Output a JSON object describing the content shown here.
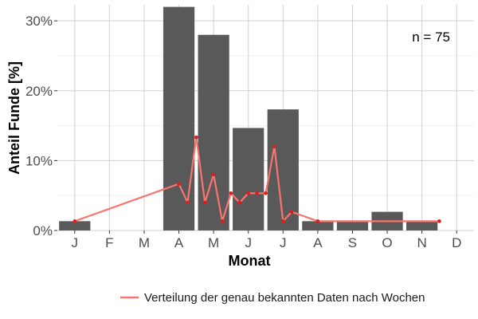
{
  "chart_data": {
    "type": "bar",
    "xlabel": "Monat",
    "ylabel": "Anteil Funde [%]",
    "ylim": [
      0,
      32.3
    ],
    "y_ticks": [
      0,
      10,
      20,
      30
    ],
    "y_tick_labels": [
      "0%",
      "10%",
      "20%",
      "30%"
    ],
    "x_ticks": [
      1,
      2,
      3,
      4,
      5,
      6,
      7,
      8,
      9,
      10,
      11,
      12
    ],
    "x_tick_labels": [
      "J",
      "F",
      "M",
      "A",
      "M",
      "J",
      "J",
      "A",
      "S",
      "O",
      "N",
      "D"
    ],
    "xlim": [
      0.5,
      12.5
    ],
    "grid": true,
    "annotation": "n = 75",
    "bar_color": "#595959",
    "bars": {
      "x": [
        1,
        4,
        5,
        6,
        7,
        8,
        9,
        10,
        11
      ],
      "values": [
        1.33,
        32.0,
        28.0,
        14.67,
        17.33,
        1.33,
        1.33,
        2.67,
        1.33
      ]
    },
    "series": [
      {
        "name": "Verteilung der genau bekannten Daten nach Wochen",
        "color": "#f8766d",
        "x": [
          1.0,
          4.0,
          4.25,
          4.5,
          4.75,
          5.0,
          5.25,
          5.5,
          5.75,
          6.0,
          6.25,
          6.5,
          6.75,
          7.0,
          7.25,
          8.0,
          11.5
        ],
        "values": [
          1.33,
          6.67,
          4.0,
          13.33,
          4.0,
          8.0,
          1.33,
          5.33,
          4.0,
          5.33,
          5.33,
          5.33,
          12.0,
          1.33,
          2.67,
          1.33,
          1.33
        ]
      }
    ],
    "legend_position": "bottom"
  }
}
